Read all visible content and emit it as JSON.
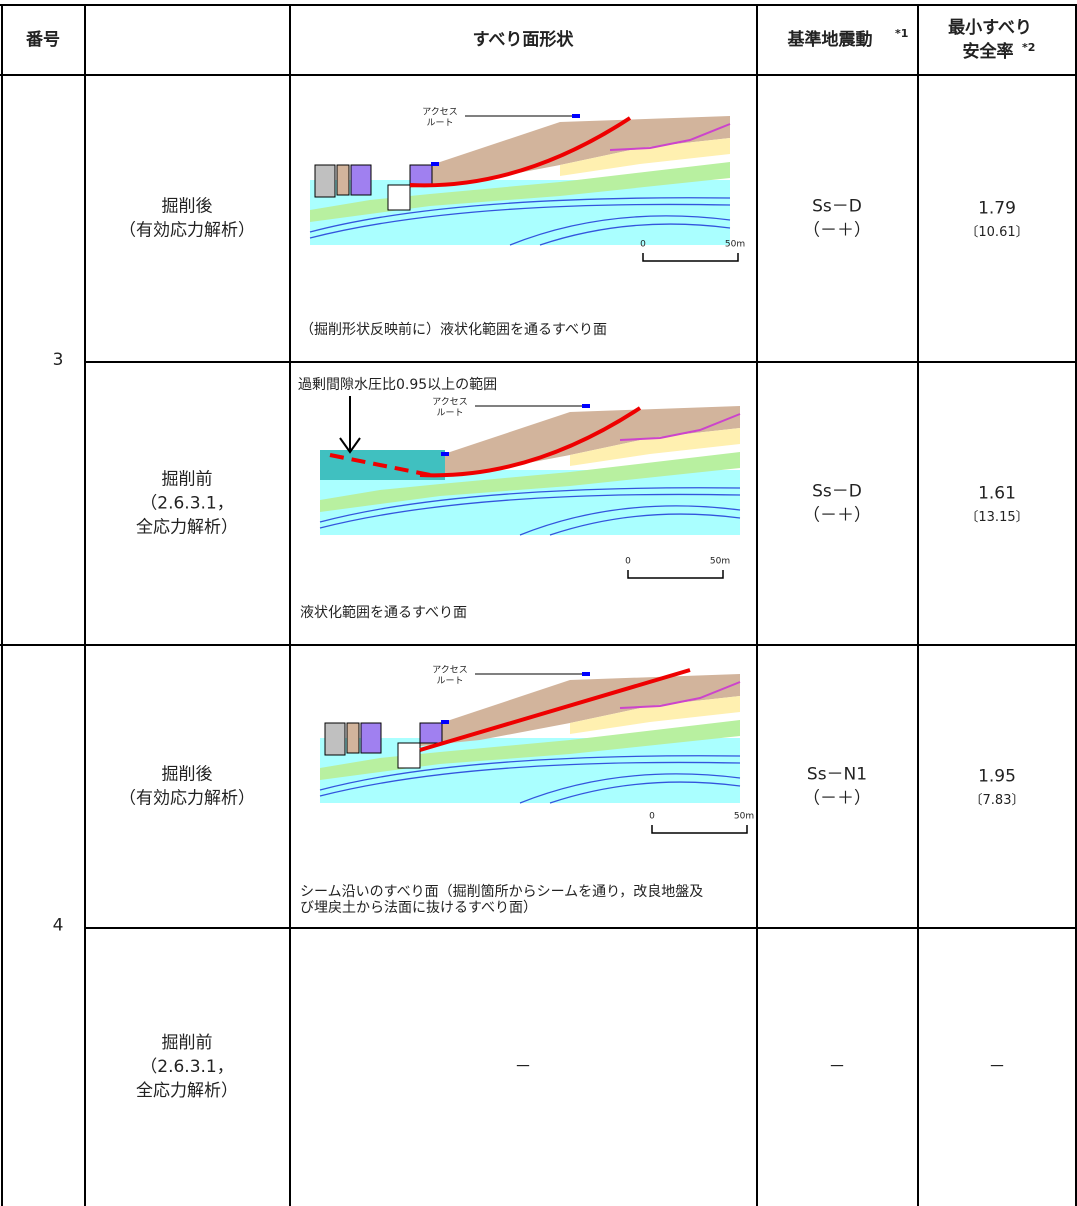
{
  "header": {
    "number": "番号",
    "shape": "すべり面形状",
    "motion": "基準地震動",
    "motion_note": "*1",
    "fs": [
      "最小すべり",
      "安全率"
    ],
    "fs_note": "*2"
  },
  "groups": [
    {
      "number": "3",
      "rows": [
        {
          "case": [
            "掘削後",
            "（有効応力解析）"
          ],
          "figure": {
            "route": [
              "アクセス",
              "ルート"
            ],
            "scale": [
              "0",
              "50m"
            ],
            "caption": [
              "（掘削形状反映前に）液状化範囲を通るすべり面"
            ]
          },
          "motion": [
            "Ss－D",
            "（－＋）"
          ],
          "fs": "1.79",
          "fs_detail": "〔10.61〕"
        },
        {
          "case": [
            "掘削前",
            "（2.6.3.1，",
            "全応力解析）"
          ],
          "figure": {
            "note": "過剰間隙水圧比0.95以上の範囲",
            "route": [
              "アクセス",
              "ルート"
            ],
            "scale": [
              "0",
              "50m"
            ],
            "caption": [
              "液状化範囲を通るすべり面"
            ]
          },
          "motion": [
            "Ss－D",
            "（－＋）"
          ],
          "fs": "1.61",
          "fs_detail": "〔13.15〕"
        }
      ]
    },
    {
      "number": "4",
      "rows": [
        {
          "case": [
            "掘削後",
            "（有効応力解析）"
          ],
          "figure": {
            "route": [
              "アクセス",
              "ルート"
            ],
            "scale": [
              "0",
              "50m"
            ],
            "caption": [
              "シーム沿いのすべり面（掘削箇所からシームを通り，改良地盤及",
              "び埋戻土から法面に抜けるすべり面）"
            ]
          },
          "motion": [
            "Ss－N1",
            "（－＋）"
          ],
          "fs": "1.95",
          "fs_detail": "〔7.83〕"
        },
        {
          "case": [
            "掘削前",
            "（2.6.3.1，",
            "全応力解析）"
          ],
          "figure": {
            "text": "－"
          },
          "motion": [
            "－"
          ],
          "fs": "－"
        }
      ]
    }
  ]
}
